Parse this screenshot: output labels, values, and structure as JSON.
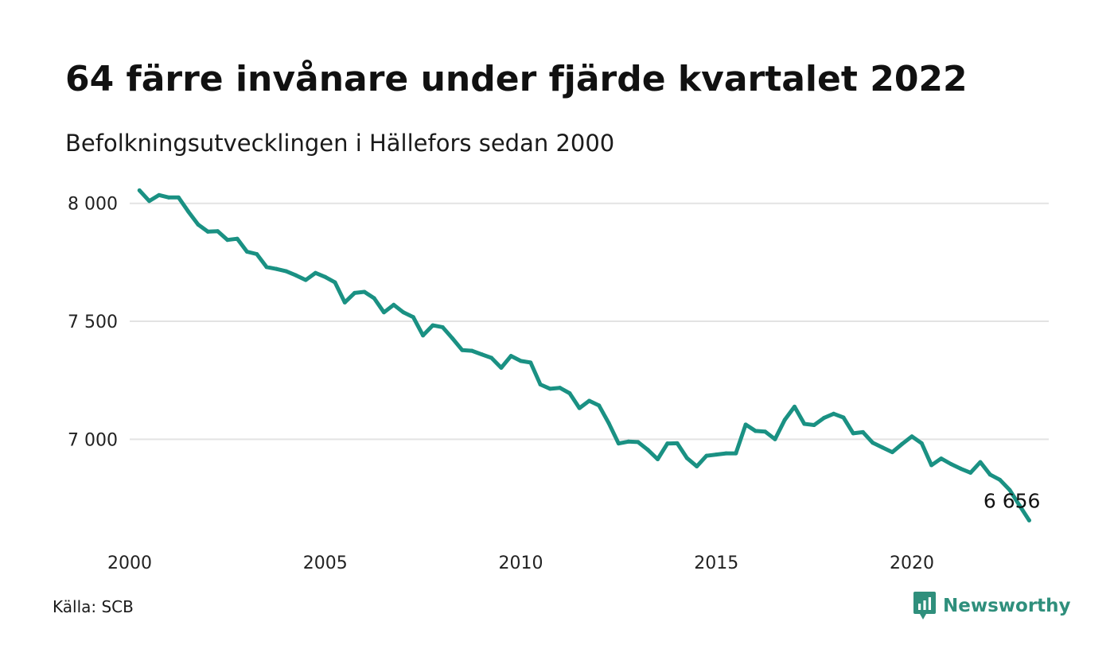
{
  "header": {
    "title": "64 färre invånare under fjärde kvartalet 2022",
    "subtitle": "Befolkningsutvecklingen i Hällefors sedan 2000"
  },
  "footer": {
    "source": "Källa: SCB",
    "brand": "Newsworthy",
    "brand_icon": "newsworthy-logo-icon"
  },
  "colors": {
    "line": "#1a9183",
    "grid": "#e3e3e3",
    "brand": "#2f8f7c"
  },
  "chart_data": {
    "type": "line",
    "title": "64 färre invånare under fjärde kvartalet 2022",
    "subtitle": "Befolkningsutvecklingen i Hällefors sedan 2000",
    "xlabel": "",
    "ylabel": "",
    "x_ticks": [
      "2000",
      "2005",
      "2010",
      "2015",
      "2020"
    ],
    "y_ticks": [
      {
        "value": 7000,
        "label": "7 000"
      },
      {
        "value": 7500,
        "label": "7 500"
      },
      {
        "value": 8000,
        "label": "8 000"
      }
    ],
    "xlim": [
      2000,
      2023.5
    ],
    "ylim": [
      6610,
      8080
    ],
    "grid": true,
    "legend": "none",
    "end_label": "6 656",
    "x": [
      2000.25,
      2000.5,
      2000.75,
      2001.0,
      2001.25,
      2001.5,
      2001.75,
      2002.0,
      2002.25,
      2002.5,
      2002.75,
      2003.0,
      2003.25,
      2003.5,
      2003.75,
      2004.0,
      2004.25,
      2004.5,
      2004.75,
      2005.0,
      2005.25,
      2005.5,
      2005.75,
      2006.0,
      2006.25,
      2006.5,
      2006.75,
      2007.0,
      2007.25,
      2007.5,
      2007.75,
      2008.0,
      2008.25,
      2008.5,
      2008.75,
      2009.0,
      2009.25,
      2009.5,
      2009.75,
      2010.0,
      2010.25,
      2010.5,
      2010.75,
      2011.0,
      2011.25,
      2011.5,
      2011.75,
      2012.0,
      2012.25,
      2012.5,
      2012.75,
      2013.0,
      2013.25,
      2013.5,
      2013.75,
      2014.0,
      2014.25,
      2014.5,
      2014.75,
      2015.0,
      2015.25,
      2015.5,
      2015.75,
      2016.0,
      2016.25,
      2016.5,
      2016.75,
      2017.0,
      2017.25,
      2017.5,
      2017.75,
      2018.0,
      2018.25,
      2018.5,
      2018.75,
      2019.0,
      2019.25,
      2019.5,
      2019.75,
      2020.0,
      2020.25,
      2020.5,
      2020.75,
      2021.0,
      2021.25,
      2021.5,
      2021.75,
      2022.0,
      2022.25,
      2022.5,
      2022.75,
      2023.0
    ],
    "series": [
      {
        "values": [
          8055,
          8010,
          8035,
          8025,
          8025,
          7965,
          7910,
          7880,
          7882,
          7845,
          7850,
          7795,
          7785,
          7730,
          7722,
          7712,
          7695,
          7675,
          7705,
          7688,
          7665,
          7580,
          7620,
          7625,
          7598,
          7538,
          7570,
          7538,
          7518,
          7440,
          7483,
          7475,
          7428,
          7378,
          7375,
          7360,
          7345,
          7303,
          7353,
          7332,
          7325,
          7232,
          7214,
          7218,
          7195,
          7132,
          7163,
          7143,
          7068,
          6982,
          6990,
          6988,
          6955,
          6915,
          6982,
          6983,
          6920,
          6885,
          6930,
          6935,
          6940,
          6940,
          7062,
          7035,
          7032,
          7000,
          7082,
          7138,
          7065,
          7060,
          7090,
          7108,
          7092,
          7025,
          7030,
          6985,
          6965,
          6945,
          6980,
          7012,
          6983,
          6890,
          6918,
          6895,
          6875,
          6858,
          6903,
          6850,
          6828,
          6785,
          6720,
          6656
        ]
      }
    ]
  }
}
